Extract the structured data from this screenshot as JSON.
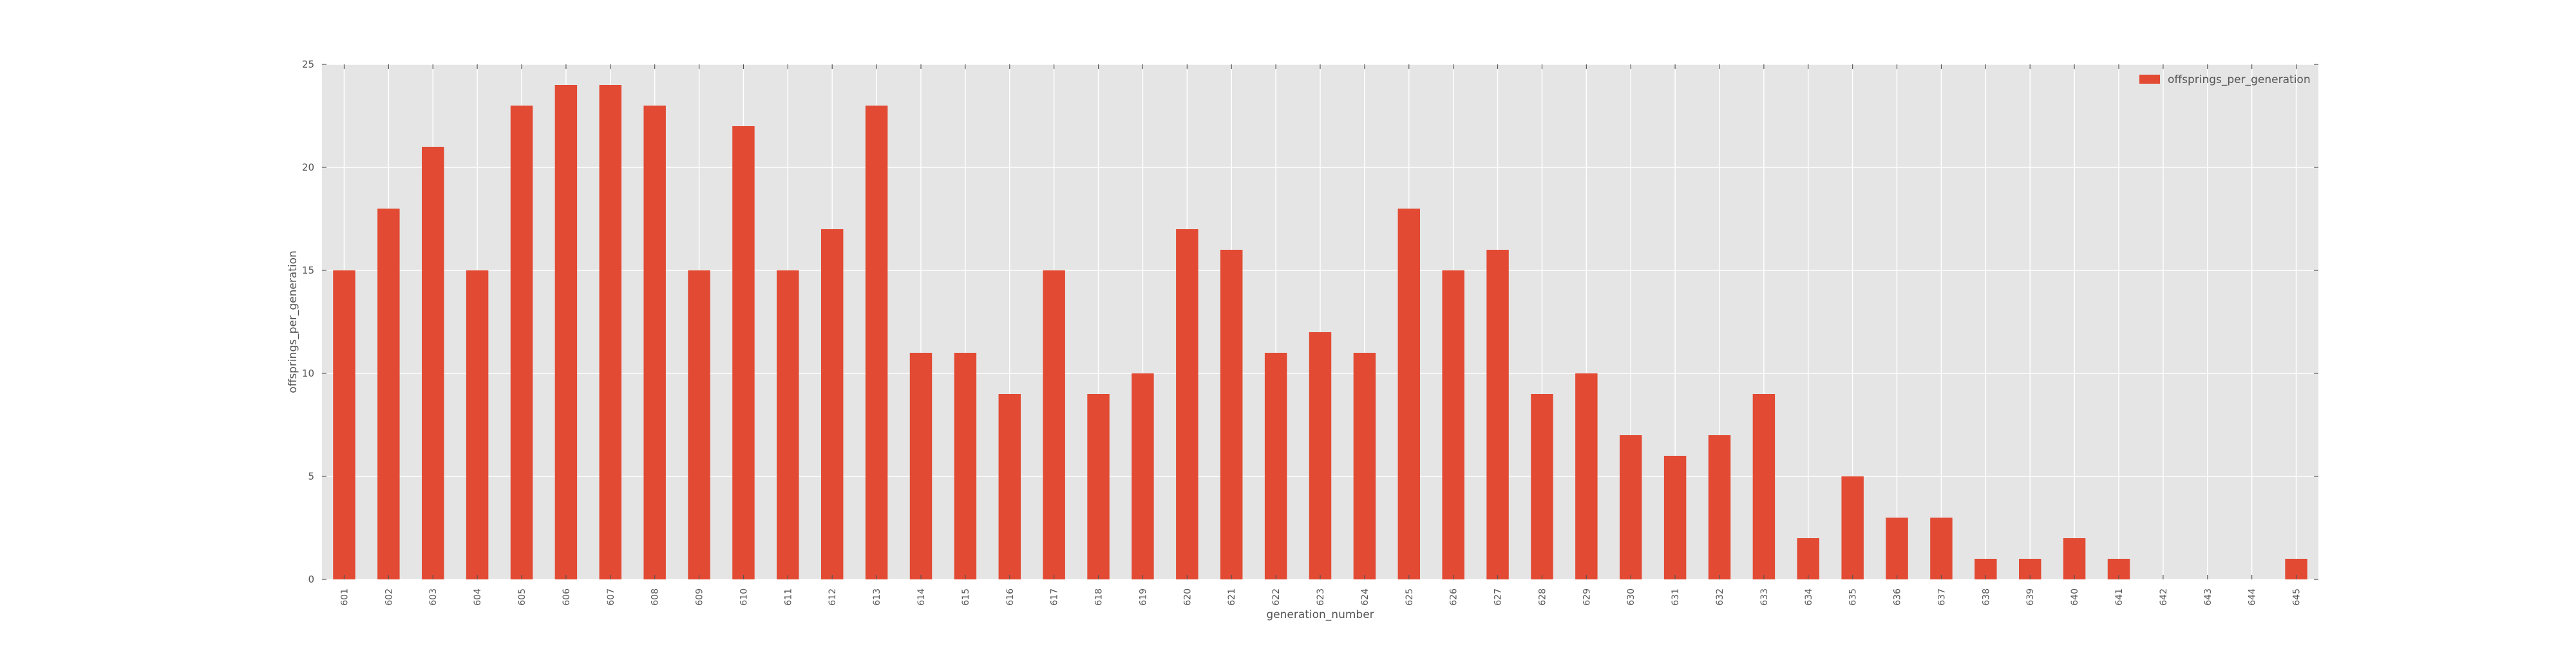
{
  "chart_data": {
    "type": "bar",
    "xlabel": "generation_number",
    "ylabel": "offsprings_per_generation",
    "ylim": [
      0,
      25
    ],
    "yticks": [
      0,
      5,
      10,
      15,
      20,
      25
    ],
    "grid": true,
    "legend_position": "top-right",
    "categories": [
      "601",
      "602",
      "603",
      "604",
      "605",
      "606",
      "607",
      "608",
      "609",
      "610",
      "611",
      "612",
      "613",
      "614",
      "615",
      "616",
      "617",
      "618",
      "619",
      "620",
      "621",
      "622",
      "623",
      "624",
      "625",
      "626",
      "627",
      "628",
      "629",
      "630",
      "631",
      "632",
      "633",
      "634",
      "635",
      "636",
      "637",
      "638",
      "639",
      "640",
      "641",
      "642",
      "643",
      "644",
      "645"
    ],
    "series": [
      {
        "name": "offsprings_per_generation",
        "color": "#E24A33",
        "values": [
          15,
          18,
          21,
          15,
          23,
          24,
          24,
          23,
          15,
          22,
          15,
          17,
          23,
          11,
          11,
          9,
          15,
          9,
          10,
          17,
          16,
          11,
          12,
          11,
          18,
          15,
          16,
          9,
          10,
          7,
          6,
          7,
          9,
          2,
          5,
          3,
          3,
          1,
          1,
          2,
          1,
          0,
          0,
          0,
          1
        ]
      }
    ]
  },
  "style": {
    "plot_background": "#E5E5E5",
    "grid_color": "#FFFFFF",
    "tick_color": "#555555"
  }
}
